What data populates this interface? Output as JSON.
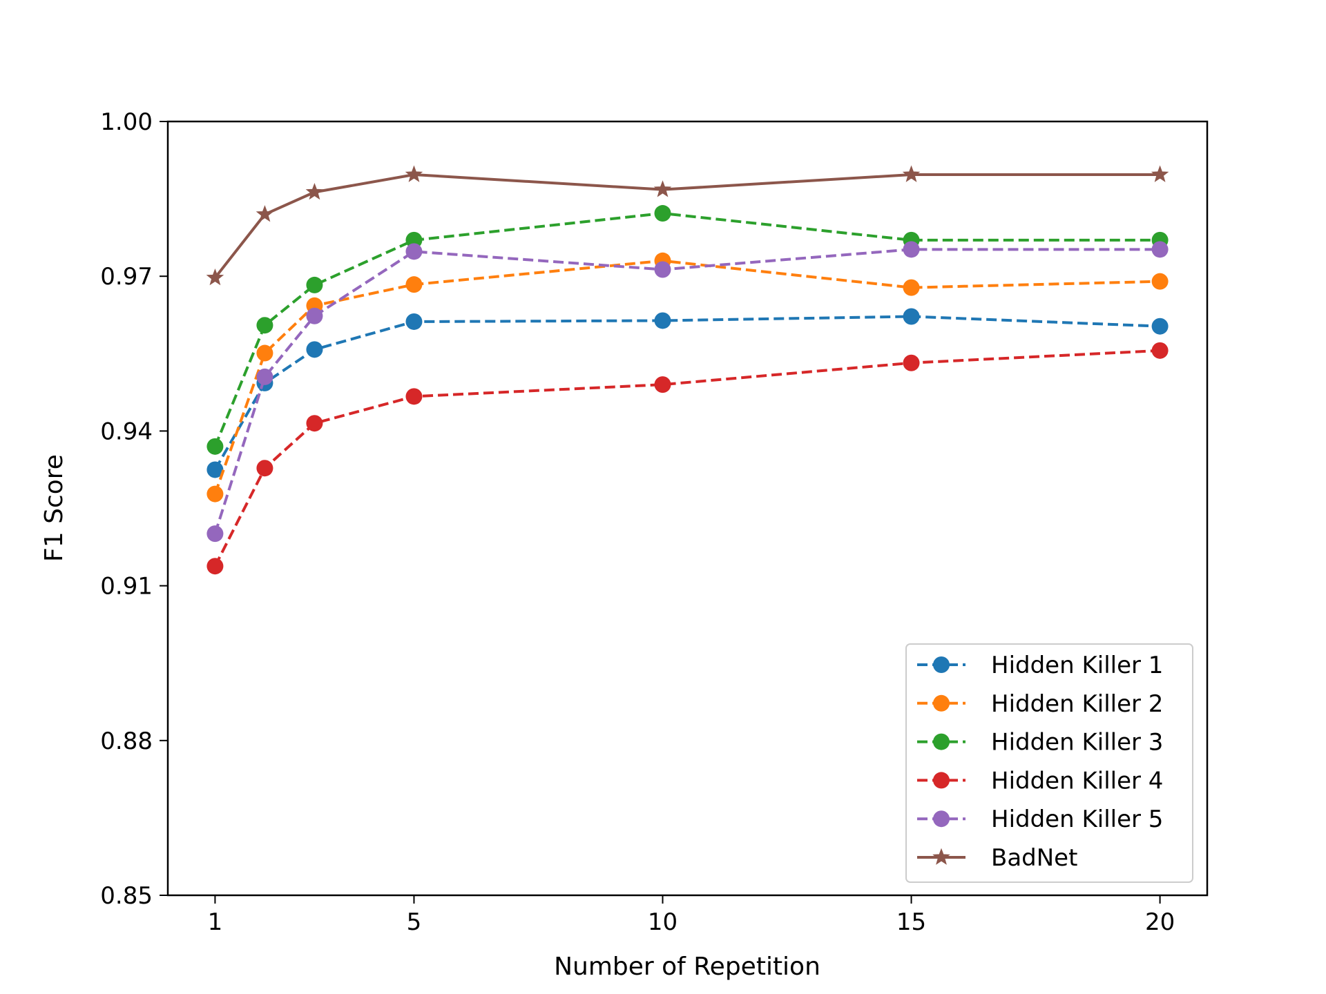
{
  "chart_data": {
    "type": "line",
    "title": "",
    "xlabel": "Number of Repetition",
    "ylabel": "F1 Score",
    "x": [
      1,
      2,
      3,
      5,
      10,
      15,
      20
    ],
    "xticks": [
      1,
      5,
      10,
      15,
      20
    ],
    "xtick_labels": [
      "1",
      "5",
      "10",
      "15",
      "20"
    ],
    "xlim": [
      0.05,
      20.95
    ],
    "ylim": [
      0.85,
      1.0
    ],
    "yticks": [
      0.85,
      0.88,
      0.91,
      0.94,
      0.97,
      1.0
    ],
    "ytick_labels": [
      "0.85",
      "0.88",
      "0.91",
      "0.94",
      "0.97",
      "1.00"
    ],
    "grid": false,
    "legend_position": "lower-right",
    "series": [
      {
        "name": "Hidden Killer 1",
        "color": "#1f77b4",
        "marker": "circle",
        "linestyle": "dashed",
        "values": [
          0.9325,
          0.9493,
          0.9558,
          0.9612,
          0.9614,
          0.9622,
          0.9603
        ]
      },
      {
        "name": "Hidden Killer 2",
        "color": "#ff7f0e",
        "marker": "circle",
        "linestyle": "dashed",
        "values": [
          0.9278,
          0.9551,
          0.9643,
          0.9684,
          0.973,
          0.9678,
          0.969
        ]
      },
      {
        "name": "Hidden Killer 3",
        "color": "#2ca02c",
        "marker": "circle",
        "linestyle": "dashed",
        "values": [
          0.937,
          0.9605,
          0.9683,
          0.977,
          0.9822,
          0.977,
          0.977
        ]
      },
      {
        "name": "Hidden Killer 4",
        "color": "#d62728",
        "marker": "circle",
        "linestyle": "dashed",
        "values": [
          0.9138,
          0.9328,
          0.9415,
          0.9467,
          0.949,
          0.9532,
          0.9556
        ]
      },
      {
        "name": "Hidden Killer 5",
        "color": "#9467bd",
        "marker": "circle",
        "linestyle": "dashed",
        "values": [
          0.9201,
          0.9505,
          0.9623,
          0.9748,
          0.9713,
          0.9752,
          0.9752
        ]
      },
      {
        "name": "BadNet",
        "color": "#8c564b",
        "marker": "star",
        "linestyle": "solid",
        "values": [
          0.9697,
          0.982,
          0.9863,
          0.9897,
          0.9868,
          0.9897,
          0.9897
        ]
      }
    ]
  }
}
